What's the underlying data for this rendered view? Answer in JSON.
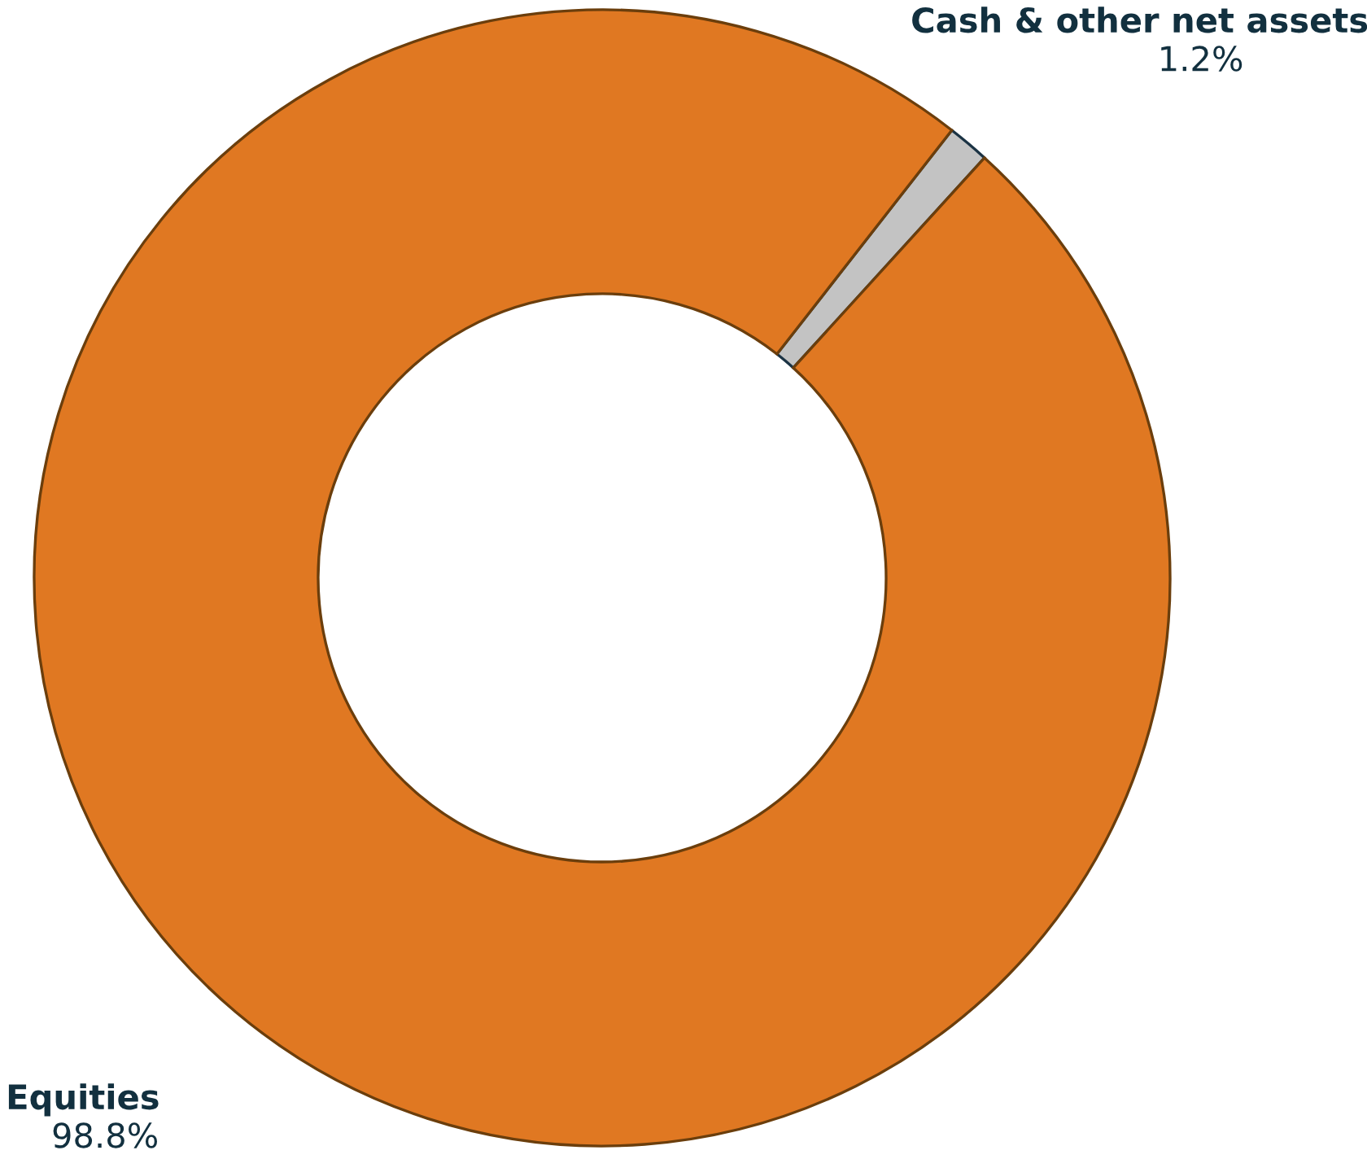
{
  "chart_data": {
    "type": "donut",
    "categories": [
      "Cash & other net assets",
      "Equities"
    ],
    "values": [
      1.2,
      98.8
    ],
    "value_labels": [
      "1.2%",
      "98.8%"
    ],
    "colors": [
      "#c3c3c3",
      "#e07822"
    ],
    "legend": false
  }
}
